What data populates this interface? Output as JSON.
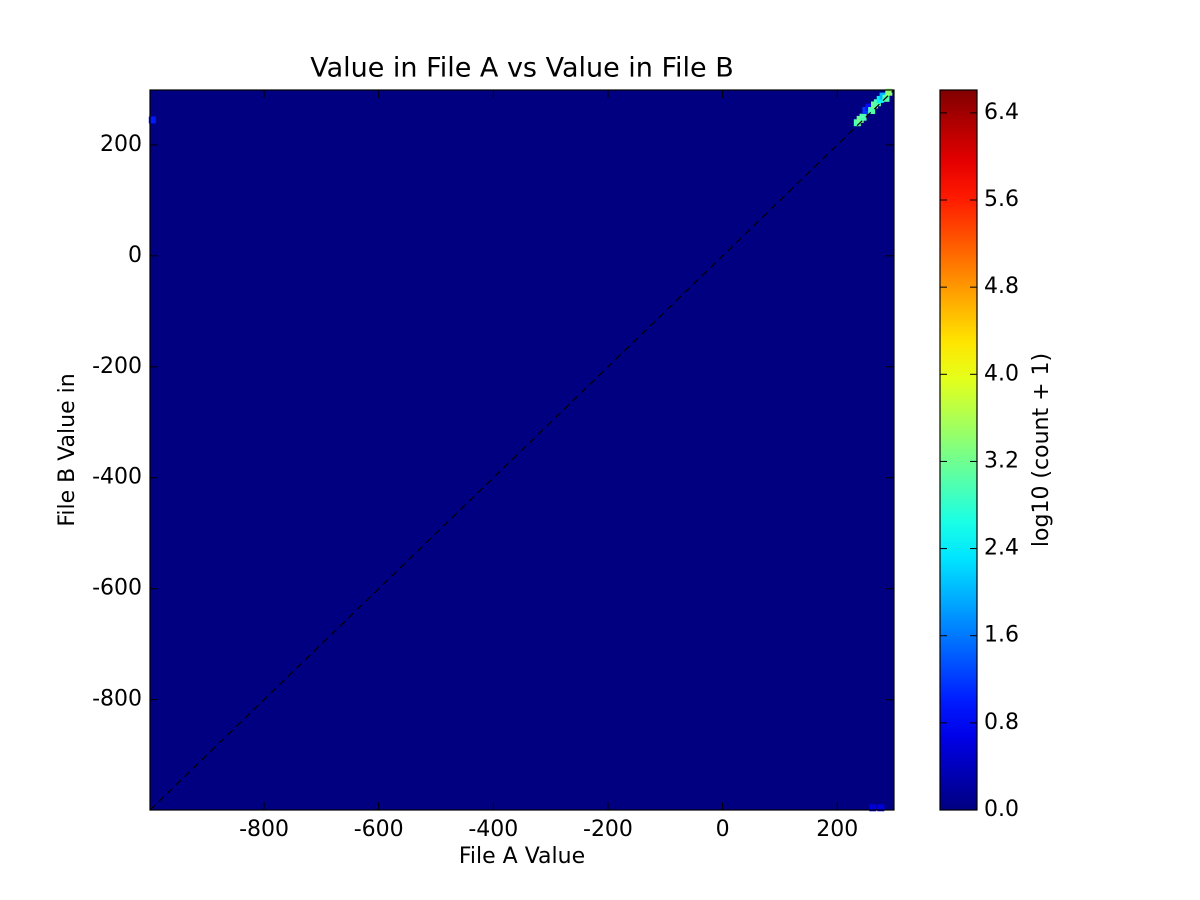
{
  "chart_data": {
    "type": "heatmap",
    "title": "Value in File A vs Value in File B",
    "x_label": "File A Value",
    "y_label": "File B Value in",
    "xlim": [
      -999,
      299
    ],
    "ylim": [
      -999,
      299
    ],
    "xticks": [
      -800,
      -600,
      -400,
      -200,
      0,
      200
    ],
    "yticks": [
      -800,
      -600,
      -400,
      -200,
      0,
      200
    ],
    "colormap": "jet",
    "cells": {
      "x": [
        -995,
        235,
        240,
        245,
        250,
        255,
        260,
        265,
        270,
        275,
        280,
        285,
        290,
        262,
        276
      ],
      "y": [
        245,
        240,
        246,
        250,
        262,
        268,
        262,
        272,
        276,
        282,
        288,
        284,
        295,
        -995,
        -995
      ],
      "values": [
        1.0,
        3.0,
        3.2,
        3.0,
        1.2,
        0.9,
        3.0,
        3.2,
        3.0,
        2.4,
        2.0,
        3.0,
        3.4,
        0.6,
        0.6
      ]
    },
    "colorbar": {
      "label": "log10 (count + 1)",
      "clim": [
        0,
        6.61
      ],
      "ticks": [
        {
          "value": 0,
          "label": "0.0"
        },
        0.8,
        1.6,
        2.4,
        3.2,
        {
          "value": 4,
          "label": "4.0"
        },
        4.8,
        5.6,
        6.4
      ]
    }
  }
}
